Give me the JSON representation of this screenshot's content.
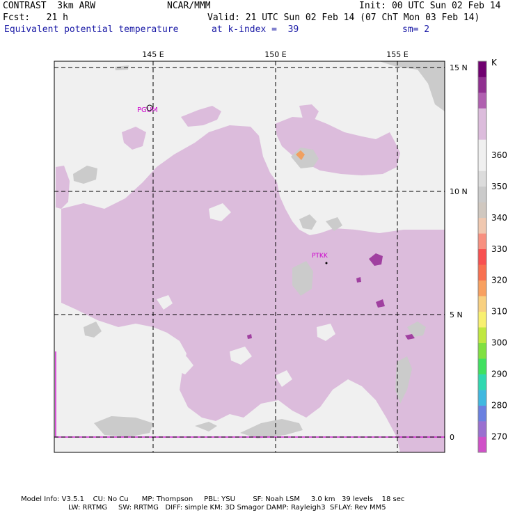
{
  "header": {
    "title": "CONTRAST  3km ARW",
    "org": "NCAR/MMM",
    "init": "Init: 00 UTC Sun 02 Feb 14",
    "fcst": "Fcst:   21 h",
    "valid": "Valid: 21 UTC Sun 02 Feb 14 (07 ChT Mon 03 Feb 14)",
    "field": "Equivalent potential temperature",
    "level": "at k-index =  39",
    "smooth": "sm= 2"
  },
  "footer": {
    "line1": "Model Info: V3.5.1    CU: No Cu      MP: Thompson     PBL: YSU        SF: Noah LSM     3.0 km   39 levels    18 sec",
    "line2": "LW: RRTMG     SW: RRTMG   DIFF: simple KM: 3D Smagor DAMP: Rayleigh3  SFLAY: Rev MM5"
  },
  "colors": {
    "background_field": "#f0f0f0",
    "purple_field": "#dcbcdc",
    "gray_field": "#cbcbcb",
    "orange_spot": "#f0a060",
    "magenta_line": "#d020d0"
  },
  "stations": [
    {
      "id": "PGUM"
    },
    {
      "id": "PTKK"
    }
  ],
  "chart_data": {
    "type": "heatmap",
    "title": "Equivalent potential temperature",
    "x_axis": {
      "ticks": [
        "145 E",
        "150 E",
        "155 E"
      ],
      "values": [
        145,
        150,
        155
      ],
      "range": [
        141,
        157
      ]
    },
    "y_axis": {
      "ticks": [
        "15 N",
        "10 N",
        "5 N",
        "0"
      ],
      "values": [
        15,
        10,
        5,
        0
      ],
      "range": [
        -0.6,
        15.6
      ]
    },
    "grid": true,
    "colorbar": {
      "unit": "K",
      "tick_labels": [
        "270",
        "280",
        "290",
        "300",
        "310",
        "320",
        "330",
        "340",
        "350",
        "360"
      ],
      "colors": [
        "#d050c8",
        "#9a70d0",
        "#6a80e0",
        "#40b8e0",
        "#30d8b0",
        "#40e060",
        "#80e040",
        "#c0e840",
        "#f8f070",
        "#f8d080",
        "#f8a060",
        "#f87050",
        "#f85050",
        "#f89080",
        "#f0c8b0",
        "#d0c8c0",
        "#cbcbcb",
        "#dcdcdc",
        "#f0f0f0",
        "#f0f0f0",
        "#dcbcdc",
        "#dcbcdc",
        "#b060b0",
        "#903090",
        "#700070"
      ]
    }
  }
}
